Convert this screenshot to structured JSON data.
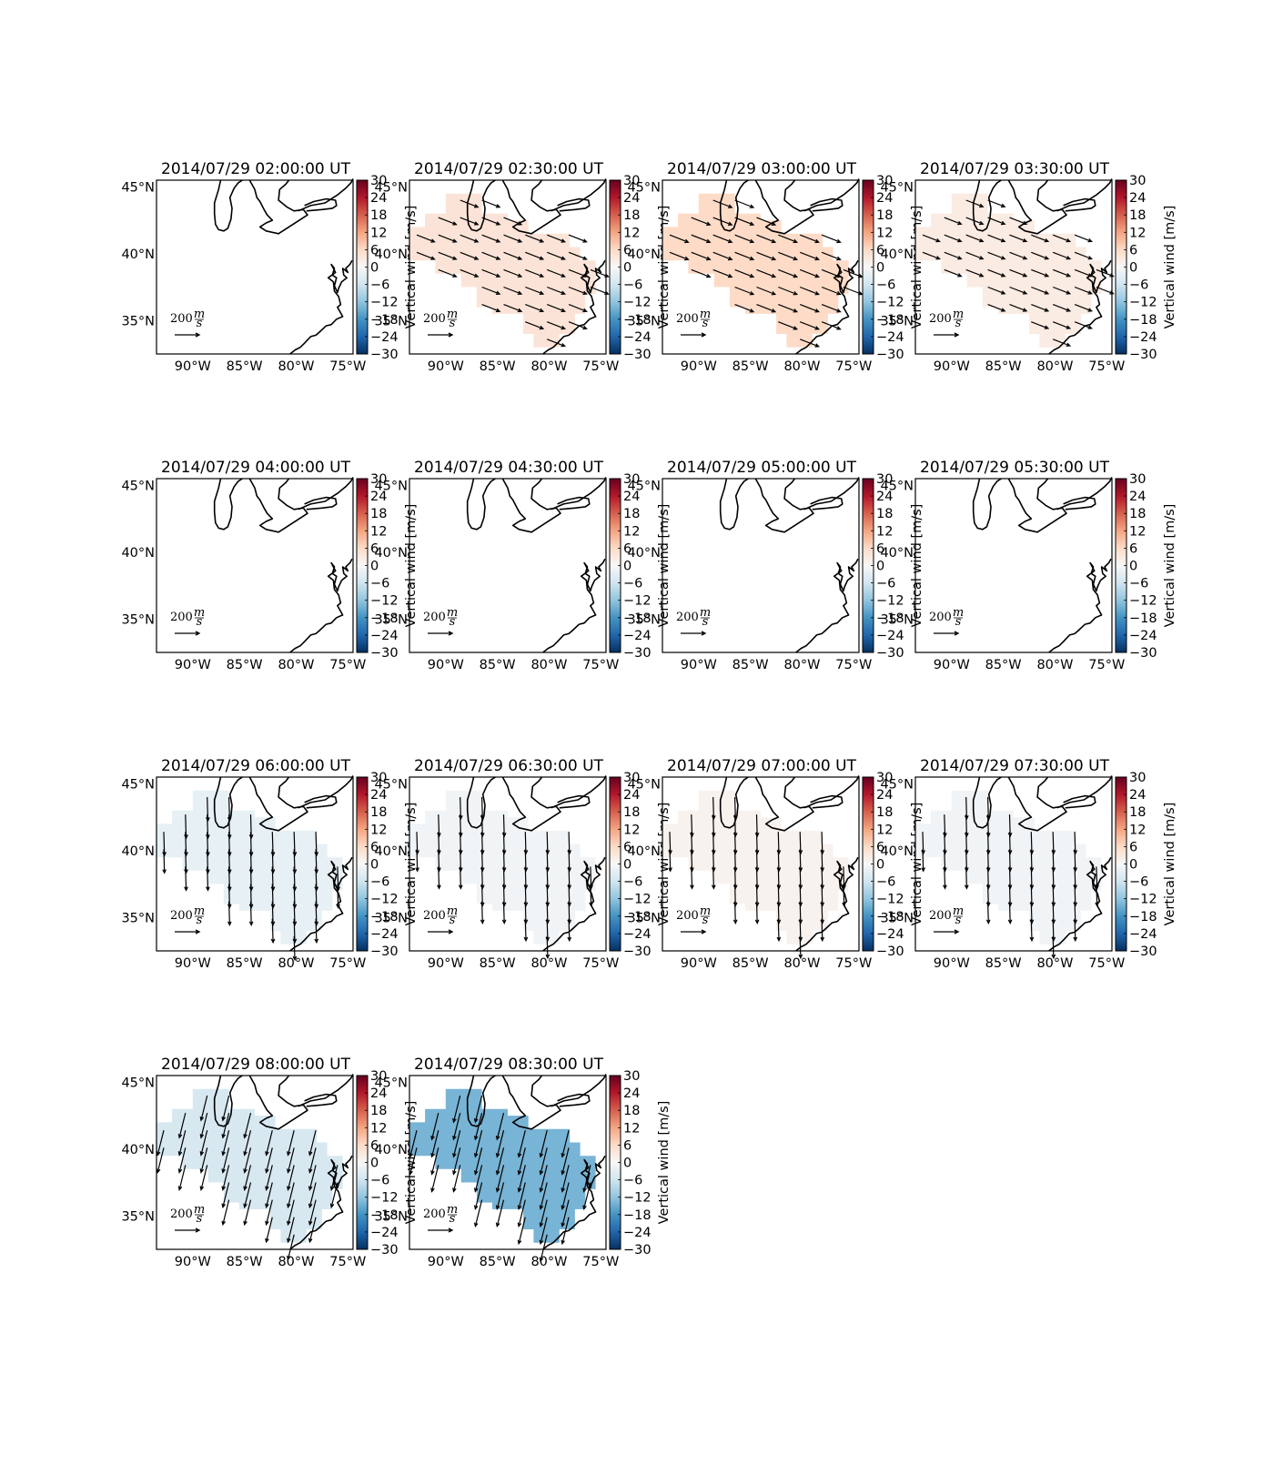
{
  "colorbar": {
    "ticks": [
      "30",
      "24",
      "18",
      "12",
      "6",
      "0",
      "−6",
      "−12",
      "−18",
      "−24",
      "−30"
    ],
    "label": "Vertical wind [m/s]",
    "range": [
      -30,
      30
    ],
    "colormap": "RdBu_r"
  },
  "axes": {
    "xticks": [
      "90°W",
      "85°W",
      "80°W",
      "75°W"
    ],
    "yticks": [
      "45°N",
      "40°N",
      "35°N"
    ],
    "lon_range": [
      -93.5,
      -74.5
    ],
    "lat_range": [
      32.5,
      45.5
    ]
  },
  "quiver_key": {
    "value": "200",
    "numerator": "m",
    "denominator": "s"
  },
  "chart_data": [
    {
      "type": "heatmap",
      "title": "2014/07/29 02:00:00 UT",
      "vertical_wind_ms": null,
      "wind_vectors": "none"
    },
    {
      "type": "heatmap",
      "title": "2014/07/29 02:30:00 UT",
      "vertical_wind_ms": 4,
      "wind_vectors": "east-southeast"
    },
    {
      "type": "heatmap",
      "title": "2014/07/29 03:00:00 UT",
      "vertical_wind_ms": 6,
      "wind_vectors": "east-southeast"
    },
    {
      "type": "heatmap",
      "title": "2014/07/29 03:30:00 UT",
      "vertical_wind_ms": 2.5,
      "wind_vectors": "east-southeast"
    },
    {
      "type": "heatmap",
      "title": "2014/07/29 04:00:00 UT",
      "vertical_wind_ms": null,
      "wind_vectors": "none"
    },
    {
      "type": "heatmap",
      "title": "2014/07/29 04:30:00 UT",
      "vertical_wind_ms": null,
      "wind_vectors": "none"
    },
    {
      "type": "heatmap",
      "title": "2014/07/29 05:00:00 UT",
      "vertical_wind_ms": null,
      "wind_vectors": "none"
    },
    {
      "type": "heatmap",
      "title": "2014/07/29 05:30:00 UT",
      "vertical_wind_ms": null,
      "wind_vectors": "none"
    },
    {
      "type": "heatmap",
      "title": "2014/07/29 06:00:00 UT",
      "vertical_wind_ms": -2.5,
      "wind_vectors": "south"
    },
    {
      "type": "heatmap",
      "title": "2014/07/29 06:30:00 UT",
      "vertical_wind_ms": -1,
      "wind_vectors": "south"
    },
    {
      "type": "heatmap",
      "title": "2014/07/29 07:00:00 UT",
      "vertical_wind_ms": 1,
      "wind_vectors": "south"
    },
    {
      "type": "heatmap",
      "title": "2014/07/29 07:30:00 UT",
      "vertical_wind_ms": -1,
      "wind_vectors": "south"
    },
    {
      "type": "heatmap",
      "title": "2014/07/29 08:00:00 UT",
      "vertical_wind_ms": -5,
      "wind_vectors": "south-southwest"
    },
    {
      "type": "heatmap",
      "title": "2014/07/29 08:30:00 UT",
      "vertical_wind_ms": -14,
      "wind_vectors": "south-southwest"
    }
  ]
}
